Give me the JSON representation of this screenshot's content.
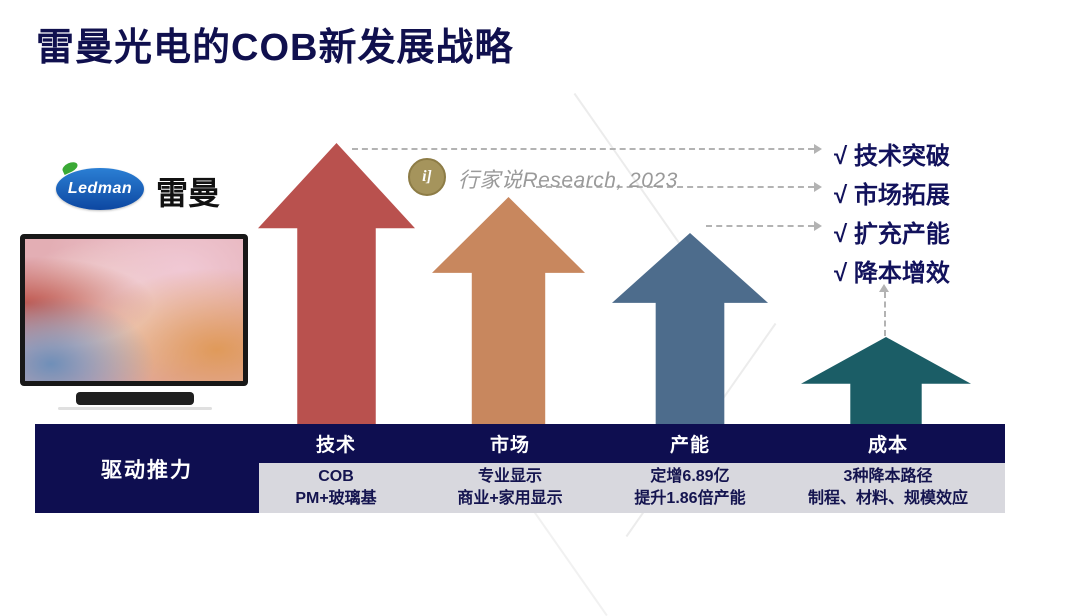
{
  "title": "雷曼光电的COB新发展战略",
  "brand": {
    "logo_text": "Ledman",
    "name_cn": "雷曼"
  },
  "source": {
    "icon_glyph": "i]",
    "text": "行家说Research, 2023"
  },
  "checklist": {
    "items": [
      "√ 技术突破",
      "√ 市场拓展",
      "√ 扩充产能",
      "√ 降本增效"
    ]
  },
  "drivers_table": {
    "row_label": "驱动推力",
    "columns": [
      {
        "header": "技术",
        "line1": "COB",
        "line2": "PM+玻璃基"
      },
      {
        "header": "市场",
        "line1": "专业显示",
        "line2": "商业+家用显示"
      },
      {
        "header": "产能",
        "line1": "定增6.89亿",
        "line2": "提升1.86倍产能"
      },
      {
        "header": "成本",
        "line1": "3种降本路径",
        "line2": "制程、材料、规模效应"
      }
    ]
  },
  "colors": {
    "title_navy": "#10104e",
    "table_navy": "#0e0e50",
    "table_gray": "#d8d8de",
    "arrow_tech": "#b9514e",
    "arrow_market": "#c8875e",
    "arrow_capacity": "#4d6c8c",
    "arrow_cost": "#1b5d66"
  },
  "chart_data": {
    "type": "bar",
    "title": "雷曼光电的COB新发展战略 — 驱动推力",
    "categories": [
      "技术",
      "市场",
      "产能",
      "成本"
    ],
    "values": [
      284,
      230,
      194,
      90
    ],
    "value_note": "relative up-arrow heights in pixels; no numeric axis shown",
    "bar_colors": [
      "#b9514e",
      "#c8875e",
      "#4d6c8c",
      "#1b5d66"
    ],
    "category_details": [
      "COB / PM+玻璃基",
      "专业显示 / 商业+家用显示",
      "定增6.89亿 / 提升1.86倍产能",
      "3种降本路径 / 制程、材料、规模效应"
    ],
    "annotations": [
      "√ 技术突破",
      "√ 市场拓展",
      "√ 扩充产能",
      "√ 降本增效"
    ],
    "legend_position": "none",
    "grid": false
  }
}
